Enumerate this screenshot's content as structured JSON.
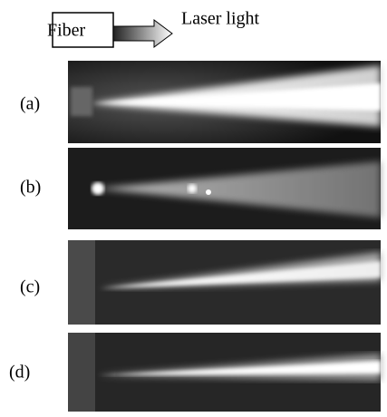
{
  "header": {
    "fiber": "Fiber",
    "laser": "Laser light"
  },
  "panels": [
    {
      "label": "(a)"
    },
    {
      "label": "(b)"
    },
    {
      "label": "(c)"
    },
    {
      "label": "(d)"
    }
  ]
}
